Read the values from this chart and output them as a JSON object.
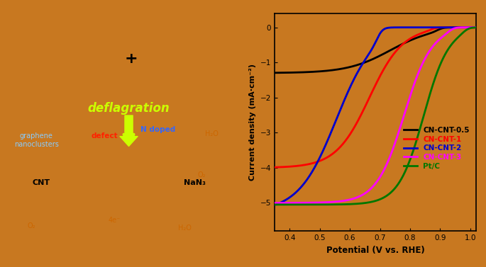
{
  "xlabel": "Potential (V vs. RHE)",
  "ylabel": "Current density (mA·cm⁻²)",
  "xlim": [
    0.35,
    1.02
  ],
  "ylim": [
    -5.8,
    0.4
  ],
  "xticks": [
    0.4,
    0.5,
    0.6,
    0.7,
    0.8,
    0.9,
    1.0
  ],
  "yticks": [
    0,
    -1,
    -2,
    -3,
    -4,
    -5
  ],
  "bg_color": "#c87820",
  "plot_bg": "#c87820",
  "fig_size": [
    6.85,
    3.77
  ],
  "curve_params": [
    {
      "label": "CN-CNT-0.5",
      "color": "#000000",
      "onset": 0.895,
      "half_wave": 0.735,
      "lim": -1.3,
      "steep": 14
    },
    {
      "label": "CN-CNT-1",
      "color": "#ff0000",
      "onset": 0.875,
      "half_wave": 0.665,
      "lim": -4.0,
      "steep": 18
    },
    {
      "label": "CN-CNT-2",
      "color": "#0000cc",
      "onset": 0.695,
      "half_wave": 0.555,
      "lim": -5.25,
      "steep": 16
    },
    {
      "label": "CN-CNT-3",
      "color": "#ff00ff",
      "onset": 0.935,
      "half_wave": 0.78,
      "lim": -5.0,
      "steep": 22
    },
    {
      "label": "Pt/C",
      "color": "#007700",
      "onset": 0.985,
      "half_wave": 0.845,
      "lim": -5.05,
      "steep": 24
    }
  ],
  "legend_colors": {
    "CN-CNT-0.5": "#000000",
    "CN-CNT-1": "#ff0000",
    "CN-CNT-2": "#0000cc",
    "CN-CNT-3": "#ff00ff",
    "Pt/C": "#007700"
  },
  "deflagration_color": "#ccff00",
  "defect_color": "#ff2200",
  "ndoped_color": "#3366ff",
  "text_color": "#000000",
  "annotation_color": "#cc6600"
}
